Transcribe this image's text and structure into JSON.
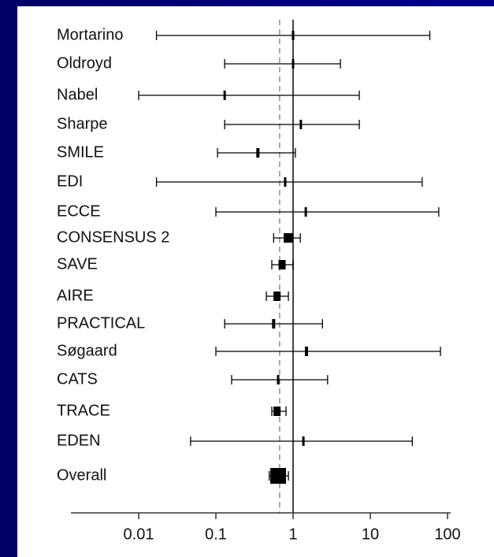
{
  "chart_data": {
    "type": "forest",
    "categories": [
      "Mortarino",
      "Oldroyd",
      "Nabel",
      "Sharpe",
      "SMILE",
      "EDI",
      "ECCE",
      "CONSENSUS 2",
      "SAVE",
      "AIRE",
      "PRACTICAL",
      "Søgaard",
      "CATS",
      "TRACE",
      "EDEN",
      "Overall"
    ],
    "values": [
      1.0,
      1.0,
      0.13,
      1.26,
      0.35,
      0.79,
      1.46,
      0.87,
      0.72,
      0.62,
      0.56,
      1.49,
      0.64,
      0.62,
      1.36,
      0.64
    ],
    "lower": [
      0.017,
      0.13,
      0.01,
      0.13,
      0.105,
      0.017,
      0.1,
      0.56,
      0.53,
      0.45,
      0.13,
      0.1,
      0.16,
      0.53,
      0.047,
      0.49
    ],
    "upper": [
      59,
      4.1,
      7.2,
      7.2,
      1.07,
      47,
      77,
      1.24,
      1.0,
      0.87,
      2.4,
      81,
      2.8,
      0.81,
      35,
      0.87
    ],
    "weights": [
      2,
      2,
      2,
      2,
      4,
      2,
      2,
      12,
      9,
      9,
      4,
      4,
      2,
      9,
      2,
      20
    ],
    "ref_line": 1,
    "pooled_line": 0.67,
    "xlim": [
      0.01,
      100
    ],
    "xticks": [
      0.01,
      0.1,
      1,
      10,
      100
    ],
    "log_x": true,
    "color": "#000000"
  }
}
